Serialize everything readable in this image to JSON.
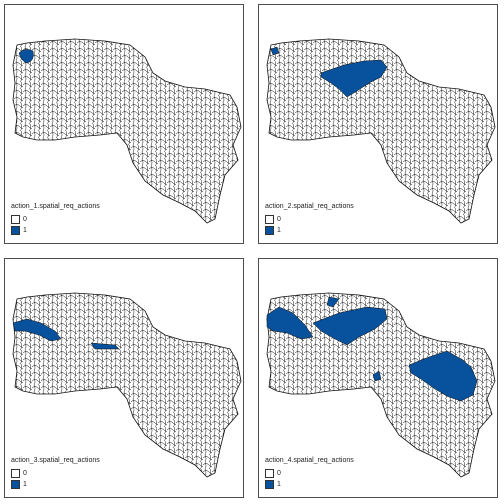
{
  "panels": [
    {
      "title": "action_1.spatial_req_actions",
      "legend": [
        {
          "label": "0",
          "color": "#ffffff"
        },
        {
          "label": "1",
          "color": "#08519c"
        }
      ]
    },
    {
      "title": "action_2.spatial_req_actions",
      "legend": [
        {
          "label": "0",
          "color": "#ffffff"
        },
        {
          "label": "1",
          "color": "#08519c"
        }
      ]
    },
    {
      "title": "action_3.spatial_req_actions",
      "legend": [
        {
          "label": "0",
          "color": "#ffffff"
        },
        {
          "label": "1",
          "color": "#08519c"
        }
      ]
    },
    {
      "title": "action_4.spatial_req_actions",
      "legend": [
        {
          "label": "0",
          "color": "#ffffff"
        },
        {
          "label": "1",
          "color": "#08519c"
        }
      ]
    }
  ]
}
